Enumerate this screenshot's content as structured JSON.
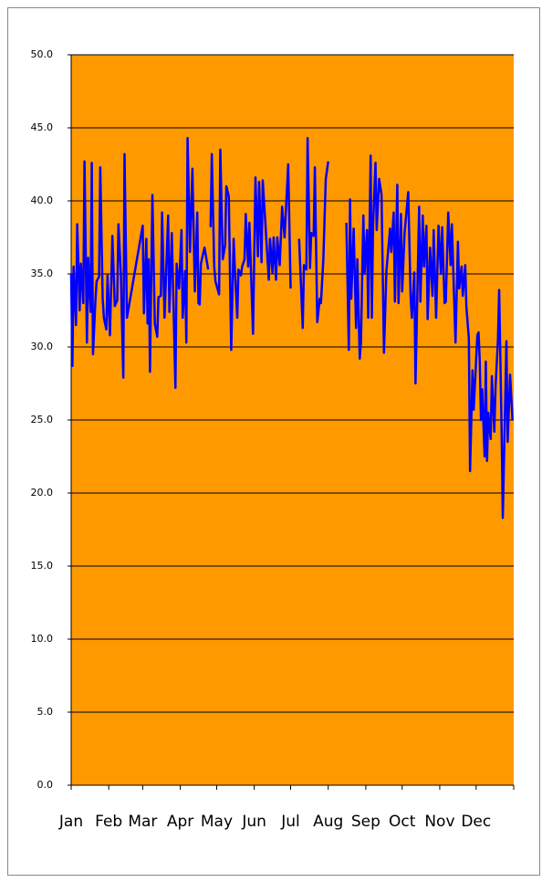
{
  "chart_data": {
    "type": "line",
    "x": [
      0,
      1,
      2,
      4,
      5,
      7,
      8,
      10,
      11,
      13,
      14,
      16,
      17,
      18,
      20,
      21,
      23,
      24,
      26,
      27,
      29,
      30,
      32,
      34,
      36,
      38,
      39,
      41,
      43,
      44,
      46,
      59,
      60,
      62,
      63,
      64,
      65,
      67,
      69,
      71,
      72,
      74,
      75,
      77,
      80,
      81,
      83,
      86,
      87,
      89,
      91,
      92,
      94,
      95,
      96,
      98,
      100,
      102,
      104,
      105,
      106,
      107,
      110,
      113,
      114,
      115,
      116,
      118,
      119,
      122,
      123,
      125,
      127,
      128,
      130,
      132,
      134,
      135,
      137,
      138,
      140,
      141,
      143,
      144,
      146,
      147,
      150,
      152,
      154,
      155,
      157,
      158,
      160,
      163,
      164,
      166,
      167,
      169,
      170,
      172,
      174,
      176,
      179,
      181,
      184,
      188,
      191,
      192,
      194,
      195,
      197,
      198,
      200,
      201,
      203,
      205,
      206,
      208,
      210,
      212,
      220,
      227,
      229,
      230,
      231,
      233,
      235,
      236,
      238,
      239,
      241,
      242,
      244,
      245,
      247,
      248,
      249,
      251,
      252,
      254,
      256,
      258,
      260,
      263,
      264,
      266,
      267,
      269,
      270,
      272,
      273,
      275,
      278,
      280,
      281,
      283,
      284,
      287,
      288,
      290,
      291,
      293,
      294,
      296,
      298,
      299,
      301,
      303,
      305,
      306,
      308,
      309,
      311,
      313,
      314,
      317,
      319,
      320,
      322,
      323,
      325,
      326,
      328,
      329,
      331,
      332,
      335,
      336,
      337,
      338,
      339,
      341,
      342,
      343,
      344,
      346,
      347,
      349,
      350,
      352,
      353,
      355,
      356,
      359,
      360,
      362,
      364
    ],
    "series": [
      {
        "color": "#0000ff",
        "values": [
          35,
          28.7,
          35.5,
          31.5,
          38.4,
          32.5,
          35.7,
          33,
          42.7,
          30.3,
          36.1,
          32.4,
          42.6,
          29.5,
          33.2,
          34.5,
          34.8,
          42.3,
          33.3,
          32,
          31.2,
          34.9,
          30.8,
          37.6,
          32.8,
          33.2,
          38.4,
          35,
          27.9,
          43.2,
          32,
          38.3,
          32.3,
          37.4,
          31.6,
          36,
          28.3,
          40.4,
          31.6,
          30.7,
          33.4,
          33.5,
          39.2,
          32,
          39,
          32.4,
          37.8,
          27.2,
          35.7,
          34,
          38,
          32,
          35.2,
          30.3,
          44.3,
          36.5,
          42.2,
          33.8,
          39.2,
          33,
          32.9,
          35.7,
          36.8,
          35.3,
          null,
          38.2,
          43.2,
          35.5,
          34.5,
          33.6,
          43.5,
          36,
          37,
          41,
          40.3,
          29.8,
          37.4,
          35.4,
          32,
          35.3,
          34.9,
          35.5,
          36,
          39.1,
          35.5,
          38.5,
          30.9,
          41.6,
          36.2,
          41.3,
          35.8,
          41.4,
          38.7,
          34.6,
          37.4,
          35.1,
          37.5,
          34.6,
          37.5,
          35.6,
          39.6,
          37.5,
          42.5,
          34,
          null,
          37.4,
          31.3,
          35.6,
          35.3,
          44.3,
          35.4,
          37.8,
          37.6,
          42.3,
          31.7,
          33.3,
          33,
          36,
          41.5,
          42.7,
          null,
          38.5,
          29.8,
          40.1,
          33.3,
          38.1,
          31.3,
          36,
          29.2,
          30.3,
          39,
          35,
          38,
          32,
          43.1,
          32,
          38.3,
          42.6,
          38,
          41.5,
          40.4,
          29.6,
          35.2,
          38.1,
          36.5,
          39.2,
          33.1,
          41.1,
          33,
          39.1,
          33.8,
          37.8,
          40.6,
          33.4,
          32,
          35.1,
          27.5,
          39.6,
          33.1,
          39,
          35.5,
          38.3,
          31.9,
          36.8,
          33.5,
          38,
          32,
          38.3,
          35,
          38.2,
          33,
          33.1,
          39.2,
          35.6,
          38.4,
          30.3,
          37.2,
          34,
          35.5,
          33.5,
          35.6,
          32.7,
          30.6,
          21.5,
          28.4,
          25.7,
          30.8,
          31,
          29,
          25,
          27.1,
          22.5,
          29,
          22.2,
          25.5,
          23.7,
          28,
          24.2,
          27.2,
          30.5,
          33.9,
          24.4,
          18.3,
          30.4,
          23.5,
          28.1,
          25
        ]
      }
    ],
    "xlim": [
      0,
      365
    ],
    "xticks": [
      {
        "value": 0,
        "label": "Jan"
      },
      {
        "value": 31,
        "label": "Feb"
      },
      {
        "value": 59,
        "label": "Mar"
      },
      {
        "value": 90,
        "label": "Apr"
      },
      {
        "value": 120,
        "label": "May"
      },
      {
        "value": 151,
        "label": "Jun"
      },
      {
        "value": 181,
        "label": "Jul"
      },
      {
        "value": 212,
        "label": "Aug"
      },
      {
        "value": 243,
        "label": "Sep"
      },
      {
        "value": 273,
        "label": "Oct"
      },
      {
        "value": 304,
        "label": "Nov"
      },
      {
        "value": 334,
        "label": "Dec"
      }
    ],
    "ylim": [
      0,
      50
    ],
    "yticks": [
      {
        "value": 0,
        "label": "0.0"
      },
      {
        "value": 5,
        "label": "5.0"
      },
      {
        "value": 10,
        "label": "10.0"
      },
      {
        "value": 15,
        "label": "15.0"
      },
      {
        "value": 20,
        "label": "20.0"
      },
      {
        "value": 25,
        "label": "25.0"
      },
      {
        "value": 30,
        "label": "30.0"
      },
      {
        "value": 35,
        "label": "35.0"
      },
      {
        "value": 40,
        "label": "40.0"
      },
      {
        "value": 45,
        "label": "45.0"
      },
      {
        "value": 50,
        "label": "50.0"
      }
    ],
    "grid": true,
    "plot_background": "#ff9900"
  }
}
